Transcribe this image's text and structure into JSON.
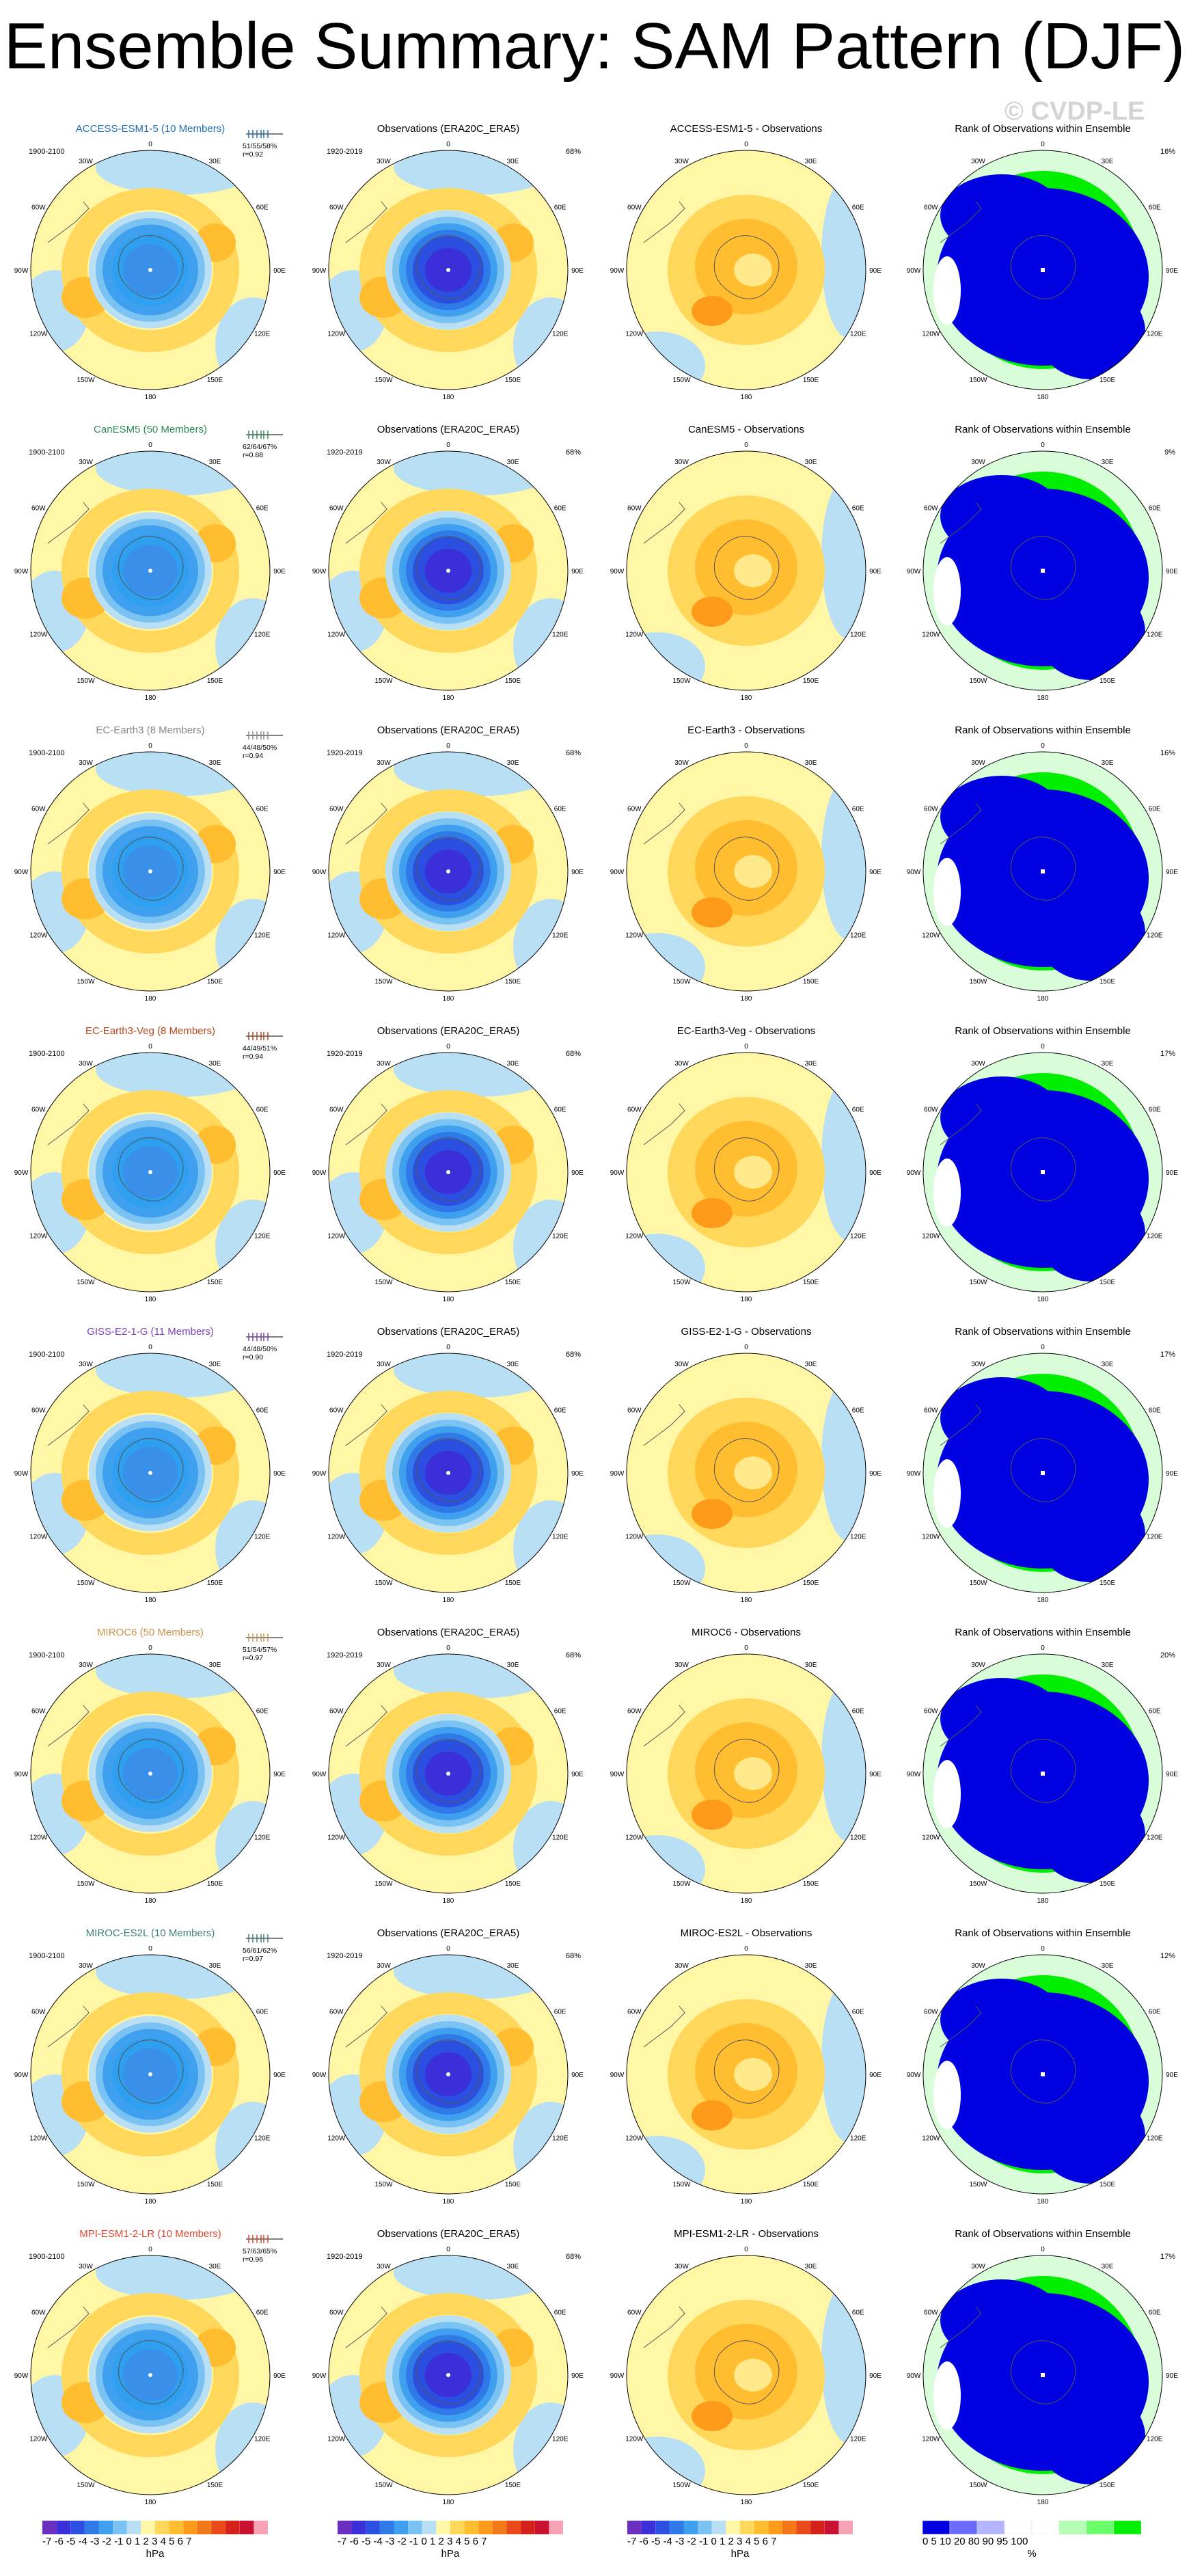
{
  "title": "Ensemble Summary: SAM Pattern (DJF)",
  "watermark": "© CVDP-LE",
  "obs_title": "Observations (ERA20C_ERA5)",
  "obs_period": "1920-2019",
  "obs_pct": "68%",
  "rank_title": "Rank of Observations within Ensemble",
  "longitude_labels": [
    "0",
    "30E",
    "60E",
    "90E",
    "120E",
    "150E",
    "180",
    "150W",
    "120W",
    "90W",
    "60W",
    "30W"
  ],
  "models": [
    {
      "name": "ACCESS-ESM1-5 (10 Members)",
      "color": "#1f6fb4",
      "period": "1900-2100",
      "stats": "51/55/58%",
      "r": "r=0.92",
      "diff_title": "ACCESS-ESM1-5 - Observations",
      "rank_pct": "16%"
    },
    {
      "name": "CanESM5 (50 Members)",
      "color": "#2e8b57",
      "period": "1900-2100",
      "stats": "62/64/67%",
      "r": "r=0.88",
      "diff_title": "CanESM5 - Observations",
      "rank_pct": "9%"
    },
    {
      "name": "EC-Earth3 (8 Members)",
      "color": "#888888",
      "period": "1900-2100",
      "stats": "44/48/50%",
      "r": "r=0.94",
      "diff_title": "EC-Earth3 - Observations",
      "rank_pct": "16%"
    },
    {
      "name": "EC-Earth3-Veg (8 Members)",
      "color": "#b5461b",
      "period": "1900-2100",
      "stats": "44/49/51%",
      "r": "r=0.94",
      "diff_title": "EC-Earth3-Veg - Observations",
      "rank_pct": "17%"
    },
    {
      "name": "GISS-E2-1-G (11 Members)",
      "color": "#7f3fbf",
      "period": "1900-2100",
      "stats": "44/48/50%",
      "r": "r=0.90",
      "diff_title": "GISS-E2-1-G - Observations",
      "rank_pct": "17%"
    },
    {
      "name": "MIROC6 (50 Members)",
      "color": "#c9924b",
      "period": "1900-2100",
      "stats": "51/54/57%",
      "r": "r=0.97",
      "diff_title": "MIROC6 - Observations",
      "rank_pct": "20%"
    },
    {
      "name": "MIROC-ES2L (10 Members)",
      "color": "#3d7f7f",
      "period": "1900-2100",
      "stats": "56/61/62%",
      "r": "r=0.97",
      "diff_title": "MIROC-ES2L - Observations",
      "rank_pct": "12%"
    },
    {
      "name": "MPI-ESM1-2-LR (10 Members)",
      "color": "#e0452b",
      "period": "1900-2100",
      "stats": "57/63/65%",
      "r": "r=0.96",
      "diff_title": "MPI-ESM1-2-LR - Observations",
      "rank_pct": "17%"
    }
  ],
  "colorbars": {
    "hpa_ticks": "-7 -6 -5 -4 -3 -2 -1 0  1  2  3  4  5  6  7",
    "hpa_unit": "hPa",
    "hpa_colors": [
      "#6b2fbf",
      "#3a2fd9",
      "#2b4fe0",
      "#2f7ae8",
      "#3fa0f0",
      "#79c2f2",
      "#b9dff5",
      "#fff7a6",
      "#ffd75a",
      "#ffbd2f",
      "#ff9b1a",
      "#f2781a",
      "#e84a1a",
      "#d4211a",
      "#c81030",
      "#f7a1b5"
    ],
    "rank_ticks": "0  5  10    20      80    90  95  100",
    "rank_unit": "%",
    "rank_colors": [
      "#0000e0",
      "#6a6aff",
      "#b5b5ff",
      "#ffffff",
      "#ffffff",
      "#b5ffb5",
      "#6aff6a",
      "#00ee00"
    ]
  },
  "chart_data": [
    {
      "type": "heatmap",
      "description_key": "ensemble_mean_SAM_pattern",
      "units": "hPa",
      "color_levels": [
        -7,
        -6,
        -5,
        -4,
        -3,
        -2,
        -1,
        0,
        1,
        2,
        3,
        4,
        5,
        6,
        7
      ]
    },
    {
      "type": "heatmap",
      "description_key": "observations_SAM_pattern",
      "units": "hPa",
      "color_levels": [
        -7,
        -6,
        -5,
        -4,
        -3,
        -2,
        -1,
        0,
        1,
        2,
        3,
        4,
        5,
        6,
        7
      ]
    },
    {
      "type": "heatmap",
      "description_key": "model_minus_observations",
      "units": "hPa",
      "color_levels": [
        -7,
        -6,
        -5,
        -4,
        -3,
        -2,
        -1,
        0,
        1,
        2,
        3,
        4,
        5,
        6,
        7
      ]
    },
    {
      "type": "heatmap",
      "description_key": "rank_of_observations",
      "units": "%",
      "color_levels": [
        0,
        5,
        10,
        20,
        80,
        90,
        95,
        100
      ]
    }
  ]
}
